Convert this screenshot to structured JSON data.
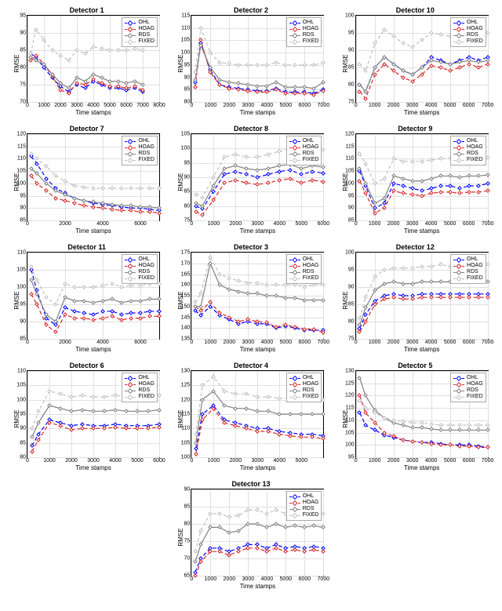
{
  "global": {
    "xlabel": "Time stamps",
    "ylabel": "RMSE",
    "title_fontsize": 9,
    "label_fontsize": 8,
    "tick_fontsize": 7,
    "background_color": "#ffffff",
    "grid_color": "#e0e0e0",
    "border_color": "#000000",
    "line_width": 1.2,
    "marker_size": 4,
    "marker_style": "diamond",
    "legend_position": "top-right"
  },
  "series_meta": [
    {
      "key": "OHL",
      "label": "OHL",
      "color": "#0000ff",
      "dash": "5,3"
    },
    {
      "key": "HOAG",
      "label": "HOAG",
      "color": "#d62728",
      "dash": "5,3"
    },
    {
      "key": "RDS",
      "label": "RDS",
      "color": "#808080",
      "dash": ""
    },
    {
      "key": "FIXED",
      "label": "FIXED",
      "color": "#c0c0c0",
      "dash": "4,3"
    }
  ],
  "x": [
    200,
    500,
    1000,
    1500,
    2000,
    2500,
    3000,
    3500,
    4000,
    4500,
    5000,
    5500,
    6000,
    6500,
    7000
  ],
  "panels": [
    {
      "title": "Detector 1",
      "row": 0,
      "col": 0,
      "xlim": [
        0,
        8000
      ],
      "ylim": [
        70,
        95
      ],
      "xticks": [
        0,
        1000,
        2000,
        3000,
        4000,
        5000,
        6000,
        7000,
        8000
      ],
      "yticks": [
        70,
        75,
        80,
        85,
        90,
        95
      ],
      "series": {
        "OHL": [
          84,
          83,
          80,
          77,
          74.5,
          73,
          75,
          74,
          76,
          75,
          74,
          74,
          73.5,
          74,
          73
        ],
        "HOAG": [
          82,
          83.5,
          81,
          77.5,
          73.5,
          72.5,
          75.5,
          75,
          76.5,
          75.5,
          74.5,
          74.5,
          74,
          74.5,
          73.5
        ],
        "RDS": [
          83,
          82,
          81,
          78,
          75.5,
          74,
          77,
          76,
          78,
          77,
          76,
          76,
          75.5,
          76,
          75
        ],
        "FIXED": [
          84,
          91,
          88,
          85,
          83.5,
          82,
          85,
          84,
          86,
          85.5,
          85,
          85,
          85,
          85.5,
          85
        ]
      }
    },
    {
      "title": "Detector 2",
      "row": 0,
      "col": 1,
      "xlim": [
        0,
        7000
      ],
      "ylim": [
        80,
        115
      ],
      "xticks": [
        0,
        1000,
        2000,
        3000,
        4000,
        5000,
        6000,
        7000
      ],
      "yticks": [
        80,
        85,
        90,
        95,
        100,
        105,
        110,
        115
      ],
      "series": {
        "OHL": [
          88,
          104,
          93,
          87,
          86,
          85.5,
          85,
          84.5,
          84.5,
          85.5,
          84,
          84,
          84,
          83.5,
          85
        ],
        "HOAG": [
          86,
          105,
          92,
          87,
          85.5,
          85,
          84.5,
          84,
          84,
          85,
          83.5,
          83.5,
          83.5,
          83,
          84.5
        ],
        "RDS": [
          89,
          103,
          94,
          89,
          88,
          87.5,
          87,
          86.5,
          86.5,
          88,
          86,
          86,
          86,
          85.5,
          88
        ],
        "FIXED": [
          92,
          110,
          100,
          96,
          95.5,
          95,
          95,
          95,
          95,
          96,
          95,
          95,
          95,
          95,
          96
        ]
      }
    },
    {
      "title": "Detector 10",
      "row": 0,
      "col": 2,
      "xlim": [
        0,
        7000
      ],
      "ylim": [
        75,
        100
      ],
      "xticks": [
        0,
        1000,
        2000,
        3000,
        4000,
        5000,
        6000,
        7000
      ],
      "yticks": [
        75,
        80,
        85,
        90,
        95,
        100
      ],
      "series": {
        "OHL": [
          80,
          78,
          85,
          88,
          86,
          84,
          83,
          85,
          88,
          87,
          86,
          87,
          88,
          87,
          88
        ],
        "HOAG": [
          78,
          76,
          83,
          86,
          84,
          82,
          81,
          83,
          85.5,
          85,
          84,
          85,
          86,
          85,
          86
        ],
        "RDS": [
          80,
          78,
          85,
          88,
          86,
          84,
          83,
          85,
          87,
          86.5,
          86,
          86.5,
          87,
          86.5,
          87
        ],
        "FIXED": [
          86,
          84,
          92,
          96,
          94,
          92,
          91,
          93,
          95,
          94.5,
          94,
          94.5,
          95,
          94.5,
          95
        ]
      }
    },
    {
      "title": "Detector 7",
      "row": 1,
      "col": 0,
      "xlim": [
        0,
        7000
      ],
      "ylim": [
        85,
        120
      ],
      "xticks": [
        0,
        2000,
        4000,
        6000
      ],
      "yticks": [
        85,
        90,
        95,
        100,
        105,
        110,
        115,
        120
      ],
      "series": {
        "OHL": [
          111,
          108,
          102,
          98,
          96,
          94,
          93,
          92,
          91.5,
          91,
          90.5,
          90,
          90,
          89.5,
          89
        ],
        "HOAG": [
          103,
          100,
          97,
          94,
          93,
          92,
          91,
          90.5,
          90,
          89.5,
          89,
          89,
          88.5,
          88.5,
          88
        ],
        "RDS": [
          106,
          104,
          100,
          97,
          95.5,
          94,
          93,
          92.5,
          92,
          91.5,
          91,
          91,
          90.5,
          90.5,
          90
        ],
        "FIXED": [
          112,
          110,
          107,
          103,
          101,
          99,
          98.5,
          98,
          98,
          98,
          98,
          98,
          98,
          98,
          98
        ]
      }
    },
    {
      "title": "Detector 8",
      "row": 1,
      "col": 1,
      "xlim": [
        0,
        6000
      ],
      "ylim": [
        75,
        105
      ],
      "xticks": [
        0,
        1000,
        2000,
        3000,
        4000,
        5000,
        6000
      ],
      "yticks": [
        75,
        80,
        85,
        90,
        95,
        100,
        105
      ],
      "series": {
        "OHL": [
          80,
          79,
          85,
          91,
          92,
          91,
          90,
          91,
          92,
          92.5,
          91,
          92,
          91.5,
          93,
          93
        ],
        "HOAG": [
          78,
          77,
          82,
          88,
          89,
          88,
          87.5,
          88,
          89,
          89.5,
          88,
          89,
          88.5,
          90,
          90
        ],
        "RDS": [
          81,
          80,
          87,
          93,
          94,
          93,
          92.5,
          93,
          94,
          94.5,
          93,
          94,
          93.5,
          95,
          95
        ],
        "FIXED": [
          84,
          83,
          90,
          97,
          98,
          97,
          97,
          98,
          99,
          100,
          99,
          100,
          99.5,
          101,
          101
        ]
      }
    },
    {
      "title": "Detector 9",
      "row": 1,
      "col": 2,
      "xlim": [
        0,
        7000
      ],
      "ylim": [
        85,
        120
      ],
      "xticks": [
        0,
        1000,
        2000,
        3000,
        4000,
        5000,
        6000,
        7000
      ],
      "yticks": [
        85,
        90,
        95,
        100,
        105,
        110,
        115,
        120
      ],
      "series": {
        "OHL": [
          105,
          99,
          90,
          92,
          100,
          99,
          98,
          97,
          98,
          99,
          99,
          98,
          99,
          99,
          100
        ],
        "HOAG": [
          101,
          96,
          88,
          90,
          97,
          96,
          95.5,
          95,
          96,
          96.5,
          96.5,
          96,
          96.5,
          96.5,
          97
        ],
        "RDS": [
          106,
          100,
          92,
          94,
          103,
          102,
          101,
          101,
          102,
          103,
          103,
          102.5,
          103,
          103,
          103.5
        ],
        "FIXED": [
          112,
          108,
          100,
          102,
          110,
          109,
          109,
          109,
          109.5,
          110,
          110,
          109.5,
          110,
          110,
          110.5
        ]
      }
    },
    {
      "title": "Detector 11",
      "row": 2,
      "col": 0,
      "xlim": [
        0,
        7000
      ],
      "ylim": [
        85,
        110
      ],
      "xticks": [
        0,
        2000,
        4000,
        6000
      ],
      "yticks": [
        85,
        90,
        95,
        100,
        105,
        110
      ],
      "series": {
        "OHL": [
          105,
          99,
          91,
          89,
          94,
          93,
          92.5,
          92,
          93,
          93,
          92,
          92.5,
          92.5,
          93,
          93
        ],
        "HOAG": [
          98,
          95,
          89,
          87,
          92,
          91,
          91,
          90.5,
          91,
          91.5,
          90.5,
          91,
          91,
          91.5,
          91.5
        ],
        "RDS": [
          102,
          98,
          92,
          90,
          97,
          96,
          96,
          95.5,
          96,
          96.5,
          95.5,
          96,
          96,
          96.5,
          96.5
        ],
        "FIXED": [
          106,
          102,
          97,
          95,
          101,
          100,
          100,
          100,
          100.5,
          101,
          100,
          100.5,
          100.5,
          101,
          101
        ]
      }
    },
    {
      "title": "Detector 3",
      "row": 2,
      "col": 1,
      "xlim": [
        0,
        7000
      ],
      "ylim": [
        135,
        175
      ],
      "xticks": [
        0,
        1000,
        2000,
        3000,
        4000,
        5000,
        6000,
        7000
      ],
      "yticks": [
        135,
        140,
        145,
        150,
        155,
        160,
        165,
        170,
        175
      ],
      "series": {
        "OHL": [
          148,
          146,
          150,
          146,
          144,
          142,
          143,
          142,
          142,
          140,
          141,
          140,
          139,
          139,
          139
        ],
        "HOAG": [
          150,
          148,
          152,
          147,
          145,
          143,
          144,
          143,
          142.5,
          140.5,
          141.5,
          140.5,
          139.5,
          139.5,
          138
        ],
        "RDS": [
          150,
          150,
          170,
          160,
          158,
          157,
          156,
          156,
          155,
          155,
          154,
          154,
          153,
          153,
          153
        ],
        "FIXED": [
          152,
          156,
          173,
          165,
          163,
          162,
          161,
          161,
          160,
          160,
          160,
          160,
          159,
          160,
          160
        ]
      }
    },
    {
      "title": "Detector 12",
      "row": 2,
      "col": 2,
      "xlim": [
        0,
        7000
      ],
      "ylim": [
        75,
        100
      ],
      "xticks": [
        0,
        1000,
        2000,
        3000,
        4000,
        5000,
        6000,
        7000
      ],
      "yticks": [
        75,
        80,
        85,
        90,
        95,
        100
      ],
      "series": {
        "OHL": [
          78,
          82,
          86,
          87.5,
          88,
          87.5,
          87.5,
          88,
          88,
          88,
          88,
          88,
          88,
          88,
          88
        ],
        "HOAG": [
          77,
          80,
          85,
          86.5,
          87,
          86.5,
          86.5,
          87,
          87,
          87,
          87,
          87,
          87,
          87,
          87
        ],
        "RDS": [
          79,
          84,
          89,
          91,
          91.5,
          91,
          91,
          91.5,
          91.5,
          91.5,
          91.5,
          91.5,
          91.5,
          91.5,
          91.5
        ],
        "FIXED": [
          81,
          87,
          93,
          95,
          95.5,
          95.5,
          95.5,
          96,
          96,
          96.5,
          96,
          96.5,
          96,
          96.5,
          96.5
        ]
      }
    },
    {
      "title": "Detector 6",
      "row": 3,
      "col": 0,
      "xlim": [
        0,
        6000
      ],
      "ylim": [
        80,
        110
      ],
      "xticks": [
        0,
        1000,
        2000,
        3000,
        4000,
        5000,
        6000
      ],
      "yticks": [
        80,
        85,
        90,
        95,
        100,
        105,
        110
      ],
      "series": {
        "OHL": [
          84,
          88,
          93,
          92,
          91,
          91.5,
          91,
          91,
          91.5,
          91,
          91,
          91,
          91.5,
          91,
          91
        ],
        "HOAG": [
          82,
          86,
          92,
          91,
          89.5,
          90,
          90,
          90,
          90.5,
          90,
          90,
          90,
          90.5,
          90,
          90
        ],
        "RDS": [
          87,
          92,
          98,
          97,
          96,
          96.5,
          96,
          96,
          96.5,
          96,
          96,
          96,
          96.5,
          96,
          96
        ],
        "FIXED": [
          90,
          96,
          103,
          102,
          101,
          101.5,
          101,
          101,
          101.5,
          101,
          101,
          101,
          101.5,
          101,
          101
        ]
      }
    },
    {
      "title": "Detector 4",
      "row": 3,
      "col": 1,
      "xlim": [
        0,
        6000
      ],
      "ylim": [
        100,
        130
      ],
      "xticks": [
        0,
        1000,
        2000,
        3000,
        4000,
        5000
      ],
      "yticks": [
        100,
        105,
        110,
        115,
        120,
        125,
        130
      ],
      "series": {
        "OHL": [
          103,
          115,
          118,
          113,
          112,
          111,
          110,
          110,
          109,
          108.5,
          108,
          108,
          107.5,
          107,
          107
        ],
        "HOAG": [
          101,
          113,
          117,
          112,
          111,
          110,
          109,
          109,
          108,
          107.5,
          107,
          107,
          106.5,
          106,
          106
        ],
        "RDS": [
          105,
          120,
          123,
          118,
          117,
          117,
          116,
          116,
          115,
          115,
          115,
          115,
          115,
          115,
          115
        ],
        "FIXED": [
          108,
          125,
          128,
          123,
          122,
          122,
          121,
          121,
          120.5,
          120.5,
          120,
          120,
          120,
          120,
          120
        ]
      }
    },
    {
      "title": "Detector 5",
      "row": 3,
      "col": 2,
      "xlim": [
        0,
        7000
      ],
      "ylim": [
        95,
        130
      ],
      "xticks": [
        0,
        1000,
        2000,
        3000,
        4000,
        5000,
        6000,
        7000
      ],
      "yticks": [
        95,
        100,
        105,
        110,
        115,
        120,
        125,
        130
      ],
      "series": {
        "OHL": [
          113,
          108,
          106,
          104,
          103,
          102,
          101.5,
          101,
          101,
          100.5,
          100,
          100,
          100,
          99.5,
          99
        ],
        "HOAG": [
          120,
          113,
          109,
          105,
          103.5,
          102,
          101.5,
          101,
          100.5,
          100,
          100,
          99.5,
          99.5,
          99,
          99
        ],
        "RDS": [
          127,
          120,
          114,
          111,
          109,
          108,
          107,
          107,
          106.5,
          106,
          106,
          106,
          106,
          106,
          106
        ],
        "FIXED": [
          118,
          115,
          113,
          111,
          110,
          109.5,
          109,
          109,
          108.5,
          108,
          108,
          108,
          108,
          108,
          108
        ]
      }
    },
    {
      "title": "Detector 13",
      "row": 4,
      "col": 1,
      "xlim": [
        0,
        7000
      ],
      "ylim": [
        65,
        90
      ],
      "xticks": [
        0,
        1000,
        2000,
        3000,
        4000,
        5000,
        6000,
        7000
      ],
      "yticks": [
        65,
        70,
        75,
        80,
        85,
        90
      ],
      "series": {
        "OHL": [
          66,
          70,
          73,
          73,
          72,
          73,
          74,
          74,
          73,
          74,
          73,
          73.5,
          73,
          73.5,
          73
        ],
        "HOAG": [
          65,
          69,
          72,
          72,
          71,
          72,
          73,
          73,
          72,
          73,
          72,
          72.5,
          72,
          72.5,
          72
        ],
        "RDS": [
          69,
          74,
          79,
          79,
          77.5,
          78,
          80,
          80,
          79,
          80,
          79,
          79.5,
          79,
          79.5,
          79
        ],
        "FIXED": [
          72,
          78,
          83,
          83,
          82,
          82.5,
          84,
          84,
          83,
          84,
          83,
          83.5,
          83,
          83.5,
          83
        ]
      }
    }
  ]
}
